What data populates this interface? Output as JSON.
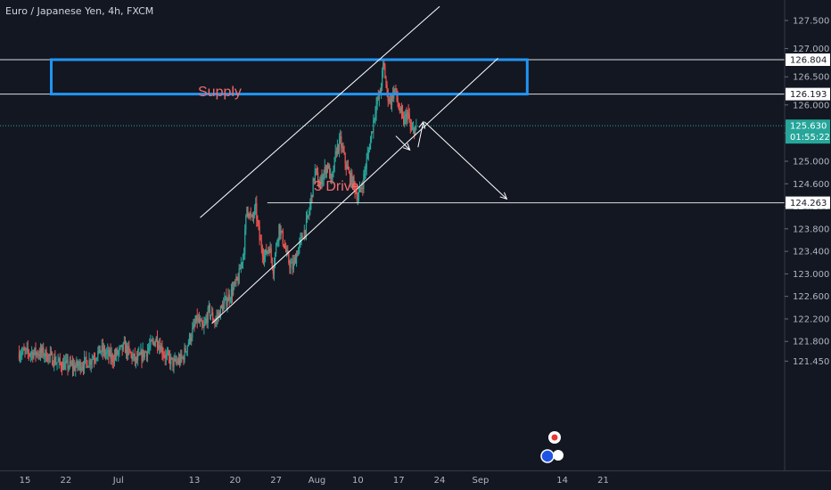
{
  "title": "Euro / Japanese Yen, 4h, FXCM",
  "colors": {
    "background": "#131722",
    "up": "#26a69a",
    "down": "#ef5350",
    "supply_box": "#2196f3",
    "lines": "#ffffff",
    "last_price": "#26a69a",
    "annotation_text": "#f06d6d"
  },
  "annotations": {
    "supply": "Supply",
    "drive": "3 Drive"
  },
  "chart_data": {
    "type": "candlestick",
    "symbol": "Euro / Japanese Yen",
    "timeframe": "4h",
    "source": "FXCM",
    "y_axis": {
      "min": 121.25,
      "max": 127.75,
      "ticks": [
        127.5,
        127.0,
        126.5,
        126.0,
        125.5,
        125.0,
        124.6,
        124.2,
        123.8,
        123.4,
        123.0,
        122.6,
        122.2,
        121.8,
        121.45
      ],
      "tick_labels": [
        "127.500",
        "127.000",
        "126.500",
        "126.000",
        "125.500",
        "125.000",
        "124.600",
        "124.200",
        "123.800",
        "123.400",
        "123.000",
        "122.600",
        "122.200",
        "121.800",
        "121.450"
      ]
    },
    "x_axis": {
      "min_day": 14,
      "max_day": 82.5,
      "tick_labels": [
        "15",
        "22",
        "Jul",
        "13",
        "20",
        "27",
        "Aug",
        "10",
        "17",
        "24",
        "Sep",
        "14",
        "21"
      ],
      "tick_days": [
        15,
        22,
        31,
        44,
        51,
        58,
        65,
        72,
        79,
        86,
        93,
        107,
        114
      ]
    },
    "levels": [
      {
        "name": "supply_top",
        "value": 126.804,
        "label": "126.804"
      },
      {
        "name": "supply_bottom",
        "value": 126.193,
        "label": "126.193"
      },
      {
        "name": "support",
        "value": 124.263,
        "label": "124.263"
      }
    ],
    "last_price": {
      "value": 125.63,
      "label": "125.630",
      "countdown": "01:55:22"
    },
    "supply_zone": {
      "from_day": 19.5,
      "to_day": 101,
      "top": 126.804,
      "bottom": 126.193
    },
    "channel": {
      "upper": [
        {
          "day": 45.0,
          "price": 124.0
        },
        {
          "day": 86.0,
          "price": 127.75
        }
      ],
      "lower": [
        {
          "day": 47.0,
          "price": 122.12
        },
        {
          "day": 96.0,
          "price": 126.83
        }
      ]
    },
    "projection_arrows": [
      [
        {
          "day": 78.5,
          "price": 125.45
        },
        {
          "day": 80.9,
          "price": 125.2
        }
      ],
      [
        {
          "day": 82.3,
          "price": 125.25
        },
        {
          "day": 83.2,
          "price": 125.7
        }
      ],
      [
        {
          "day": 83.4,
          "price": 125.7
        },
        {
          "day": 97.5,
          "price": 124.33
        }
      ]
    ],
    "anchors": [
      {
        "day": 18.0,
        "price": 121.6
      },
      {
        "day": 19.5,
        "price": 121.5
      },
      {
        "day": 21.0,
        "price": 121.4
      },
      {
        "day": 23.5,
        "price": 121.35
      },
      {
        "day": 26.0,
        "price": 121.45
      },
      {
        "day": 28.0,
        "price": 121.65
      },
      {
        "day": 30.0,
        "price": 121.5
      },
      {
        "day": 32.0,
        "price": 121.7
      },
      {
        "day": 34.0,
        "price": 121.45
      },
      {
        "day": 36.0,
        "price": 121.65
      },
      {
        "day": 37.5,
        "price": 121.85
      },
      {
        "day": 39.0,
        "price": 121.55
      },
      {
        "day": 40.5,
        "price": 121.4
      },
      {
        "day": 42.0,
        "price": 121.5
      },
      {
        "day": 43.0,
        "price": 121.8
      },
      {
        "day": 44.5,
        "price": 122.2
      },
      {
        "day": 45.5,
        "price": 122.0
      },
      {
        "day": 46.5,
        "price": 122.35
      },
      {
        "day": 47.5,
        "price": 122.15
      },
      {
        "day": 49.0,
        "price": 122.45
      },
      {
        "day": 50.5,
        "price": 122.7
      },
      {
        "day": 51.5,
        "price": 122.9
      },
      {
        "day": 52.5,
        "price": 123.45
      },
      {
        "day": 53.0,
        "price": 124.2
      },
      {
        "day": 53.8,
        "price": 123.95
      },
      {
        "day": 54.5,
        "price": 124.15
      },
      {
        "day": 55.2,
        "price": 123.6
      },
      {
        "day": 56.0,
        "price": 123.3
      },
      {
        "day": 56.8,
        "price": 123.5
      },
      {
        "day": 57.5,
        "price": 123.1
      },
      {
        "day": 58.5,
        "price": 123.85
      },
      {
        "day": 59.3,
        "price": 123.55
      },
      {
        "day": 60.0,
        "price": 123.25
      },
      {
        "day": 60.8,
        "price": 123.1
      },
      {
        "day": 61.8,
        "price": 123.45
      },
      {
        "day": 62.8,
        "price": 123.75
      },
      {
        "day": 63.5,
        "price": 124.0
      },
      {
        "day": 64.0,
        "price": 124.35
      },
      {
        "day": 64.7,
        "price": 124.85
      },
      {
        "day": 65.4,
        "price": 124.55
      },
      {
        "day": 66.0,
        "price": 124.75
      },
      {
        "day": 66.8,
        "price": 124.95
      },
      {
        "day": 67.5,
        "price": 124.6
      },
      {
        "day": 68.3,
        "price": 125.2
      },
      {
        "day": 69.0,
        "price": 125.35
      },
      {
        "day": 69.8,
        "price": 125.0
      },
      {
        "day": 70.5,
        "price": 124.75
      },
      {
        "day": 71.3,
        "price": 124.6
      },
      {
        "day": 72.0,
        "price": 124.35
      },
      {
        "day": 72.8,
        "price": 124.6
      },
      {
        "day": 73.5,
        "price": 125.0
      },
      {
        "day": 74.2,
        "price": 125.4
      },
      {
        "day": 75.0,
        "price": 125.95
      },
      {
        "day": 75.8,
        "price": 126.2
      },
      {
        "day": 76.4,
        "price": 126.75
      },
      {
        "day": 77.0,
        "price": 126.2
      },
      {
        "day": 77.6,
        "price": 126.05
      },
      {
        "day": 78.3,
        "price": 126.3
      },
      {
        "day": 79.0,
        "price": 125.95
      },
      {
        "day": 79.8,
        "price": 125.7
      },
      {
        "day": 80.5,
        "price": 125.85
      },
      {
        "day": 81.2,
        "price": 125.5
      },
      {
        "day": 82.0,
        "price": 125.63
      }
    ]
  }
}
